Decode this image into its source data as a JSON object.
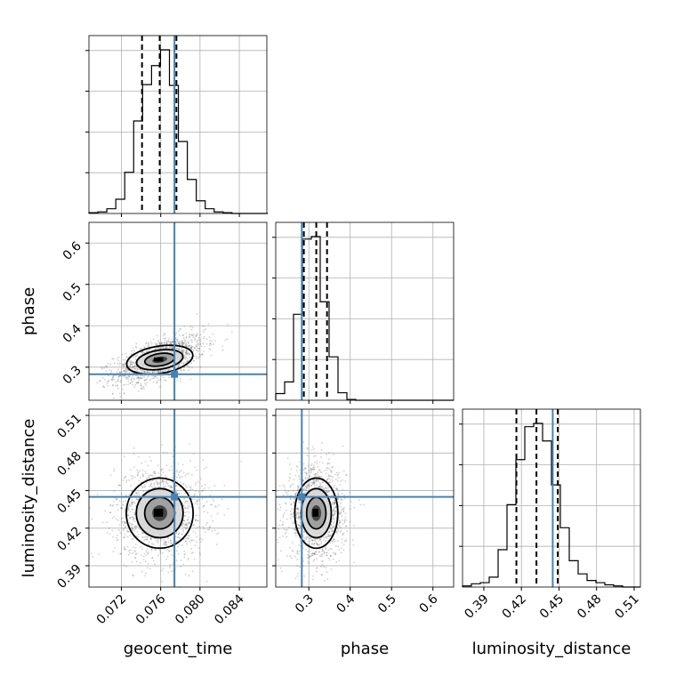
{
  "chart_data": {
    "type": "corner",
    "parameters": [
      {
        "name": "geocent_time",
        "label": "geocent_time",
        "range": [
          0.0687,
          0.0868
        ],
        "ticks": [
          0.072,
          0.076,
          0.08,
          0.084
        ],
        "tick_labels": [
          "0.072",
          "0.076",
          "0.080",
          "0.084"
        ],
        "truth": 0.0774,
        "quantiles": [
          0.0741,
          0.0759,
          0.0776
        ],
        "hist_start": 0.0687,
        "hist_bin_width": 0.00091,
        "hist_counts": [
          1,
          2,
          6,
          18,
          52,
          117,
          163,
          187,
          207,
          162,
          91,
          43,
          16,
          6,
          2,
          1,
          0,
          0,
          0,
          0
        ]
      },
      {
        "name": "phase",
        "label": "phase",
        "range": [
          0.22,
          0.65
        ],
        "ticks": [
          0.3,
          0.4,
          0.5,
          0.6
        ],
        "tick_labels": [
          "0.3",
          "0.4",
          "0.5",
          "0.6"
        ],
        "truth": 0.283,
        "quantiles": [
          0.288,
          0.318,
          0.344
        ],
        "hist_start": 0.22,
        "hist_bin_width": 0.0215,
        "hist_counts": [
          8,
          22,
          103,
          193,
          196,
          118,
          52,
          9,
          1,
          0,
          0,
          0,
          0,
          0,
          0,
          0,
          0,
          0,
          0,
          0
        ]
      },
      {
        "name": "luminosity_distance",
        "label": "luminosity_distance",
        "range": [
          0.373,
          0.515
        ],
        "ticks": [
          0.39,
          0.42,
          0.45,
          0.48,
          0.51
        ],
        "tick_labels": [
          "0.39",
          "0.42",
          "0.45",
          "0.48",
          "0.51"
        ],
        "truth": 0.445,
        "quantiles": [
          0.416,
          0.432,
          0.449
        ],
        "hist_start": 0.373,
        "hist_bin_width": 0.0071,
        "hist_counts": [
          1,
          3,
          4,
          9,
          34,
          75,
          116,
          146,
          149,
          133,
          93,
          54,
          24,
          12,
          6,
          4,
          2,
          1,
          0,
          0
        ]
      }
    ],
    "pairs": [
      {
        "x": "geocent_time",
        "y": "phase",
        "center": [
          0.0759,
          0.318
        ],
        "spread": [
          0.0017,
          0.022
        ],
        "correlation": 0.6
      },
      {
        "x": "geocent_time",
        "y": "luminosity_distance",
        "center": [
          0.0759,
          0.432
        ],
        "spread": [
          0.0017,
          0.014
        ],
        "correlation": 0.0
      },
      {
        "x": "phase",
        "y": "luminosity_distance",
        "center": [
          0.318,
          0.432
        ],
        "spread": [
          0.026,
          0.014
        ],
        "correlation": 0.0
      }
    ],
    "colors": {
      "truth": "#4682b4",
      "hist": "#000000",
      "grid": "#b0b0b0"
    },
    "grid": true
  }
}
